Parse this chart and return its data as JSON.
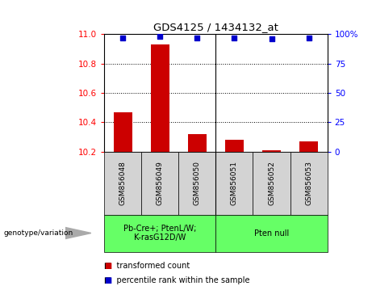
{
  "title": "GDS4125 / 1434132_at",
  "samples": [
    "GSM856048",
    "GSM856049",
    "GSM856050",
    "GSM856051",
    "GSM856052",
    "GSM856053"
  ],
  "transformed_count": [
    10.47,
    10.93,
    10.32,
    10.28,
    10.21,
    10.27
  ],
  "percentile_rank": [
    97,
    98,
    97,
    97,
    96,
    97
  ],
  "ylim_left": [
    10.2,
    11.0
  ],
  "ylim_right": [
    0,
    100
  ],
  "yticks_left": [
    10.2,
    10.4,
    10.6,
    10.8,
    11.0
  ],
  "yticks_right": [
    0,
    25,
    50,
    75,
    100
  ],
  "bar_color": "#cc0000",
  "dot_color": "#0000cc",
  "group1": {
    "label": "Pb-Cre+; PtenL/W;\nK-rasG12D/W",
    "color": "#66ff66"
  },
  "group2": {
    "label": "Pten null",
    "color": "#66ff66"
  },
  "genotype_label": "genotype/variation",
  "legend_bar": "transformed count",
  "legend_dot": "percentile rank within the sample",
  "bar_bottom": 10.2,
  "background_color": "#ffffff",
  "plot_bg": "#ffffff",
  "tick_label_bg": "#d3d3d3",
  "grid_dotted_at": [
    10.4,
    10.6,
    10.8
  ]
}
